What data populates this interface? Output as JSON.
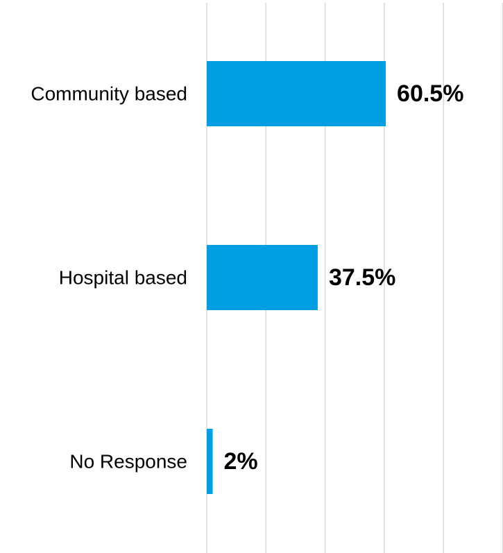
{
  "colors": {
    "bar": "#009FE3",
    "grid": "#D9D9D9",
    "text": "#000000"
  },
  "chart_data": {
    "type": "bar",
    "orientation": "horizontal",
    "categories": [
      "Community based",
      "Hospital based",
      "No Response"
    ],
    "values": [
      60.5,
      37.5,
      2
    ],
    "data_labels": [
      "60.5%",
      "37.5%",
      "2%"
    ],
    "xlim": [
      0,
      100
    ],
    "grid": true,
    "legend": "none",
    "title": "",
    "xlabel": "",
    "ylabel": ""
  }
}
